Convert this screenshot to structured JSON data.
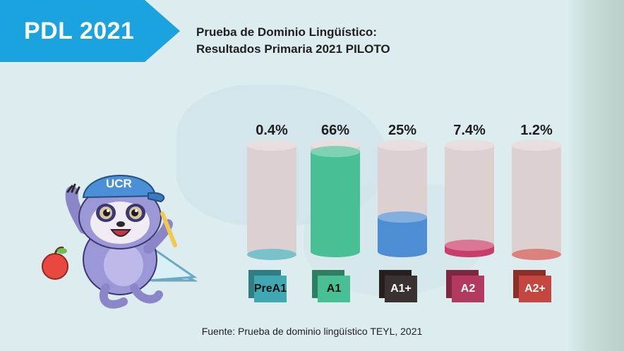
{
  "banner": {
    "text": "PDL 2021",
    "color": "#1ba3e0"
  },
  "title": {
    "line1": "Prueba de Dominio Lingüístico:",
    "line2": "Resultados Primaria 2021 PILOTO"
  },
  "source": "Fuente: Prueba de dominio lingüístico TEYL, 2021",
  "mascot": {
    "cap_text": "UCR",
    "icons": [
      "sloth-mascot-icon",
      "apple-icon",
      "protractor-icon"
    ]
  },
  "chart_data": {
    "type": "bar",
    "style": "3d-cylinder",
    "categories": [
      "PreA1",
      "A1",
      "A1+",
      "A2",
      "A2+"
    ],
    "values": [
      0.4,
      66,
      25,
      7.4,
      1.2
    ],
    "value_labels": [
      "0.4%",
      "66%",
      "25%",
      "7.4%",
      "1.2%"
    ],
    "unit": "%",
    "ylim": [
      0,
      70
    ],
    "grid": false,
    "colors": [
      "#3fa8b3",
      "#49bf95",
      "#4d8dd3",
      "#c93d6a",
      "#cc4b47"
    ],
    "label_colors": {
      "front": [
        "#3fa8b3",
        "#49bf95",
        "#3a3230",
        "#b33a5e",
        "#c4473f"
      ],
      "back": [
        "#2f7e86",
        "#2f7f62",
        "#261f1d",
        "#7e2740",
        "#8c2f2a"
      ],
      "text": [
        "#111111",
        "#111111",
        "#ffffff",
        "#ffffff",
        "#ffffff"
      ]
    },
    "empty_color": "#ddd0d1"
  }
}
